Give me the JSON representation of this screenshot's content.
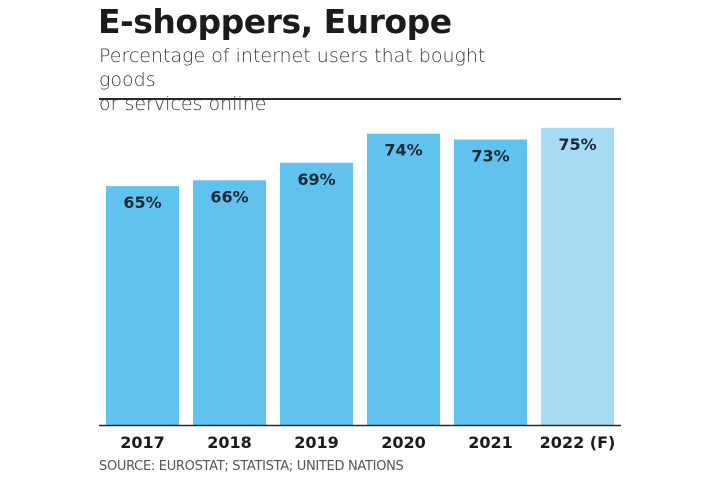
{
  "chart_data": {
    "type": "bar",
    "title": "E-shoppers, Europe",
    "subtitle": "Percentage of internet users that bought goods or services online",
    "subtitle_lines": [
      "Percentage of internet users that bought goods",
      "or services online"
    ],
    "categories": [
      "2017",
      "2018",
      "2019",
      "2020",
      "2021",
      "2022 (F)"
    ],
    "values": [
      65,
      66,
      69,
      74,
      73,
      75
    ],
    "data_labels": [
      "65%",
      "66%",
      "69%",
      "74%",
      "73%",
      "75%"
    ],
    "forecast": [
      false,
      false,
      false,
      false,
      false,
      true
    ],
    "xlabel": "",
    "ylabel": "",
    "unit": "%",
    "ylim": [
      24,
      76
    ],
    "grid": false,
    "legend": "none",
    "source": "SOURCE: EUROSTAT; STATISTA; UNITED NATIONS"
  },
  "colors": {
    "bar": "#62c2ee",
    "bar_forecast": "#a9daf4",
    "label": "#1a2a3a",
    "axis": "#2a2a2a"
  }
}
